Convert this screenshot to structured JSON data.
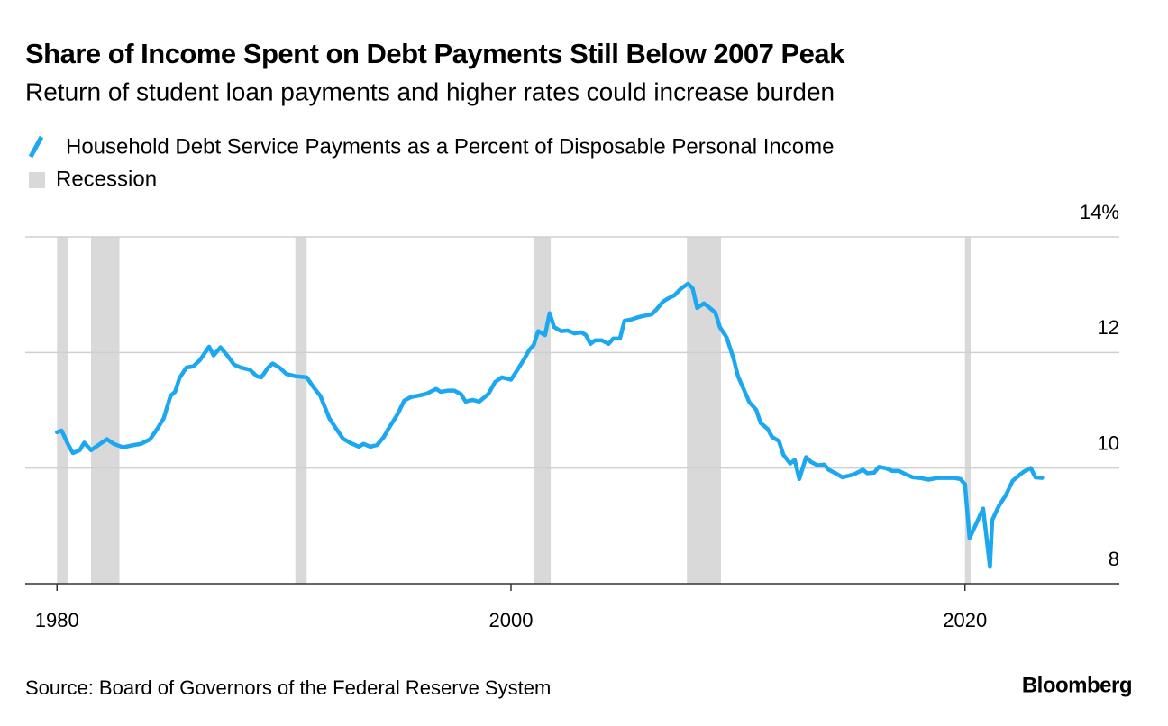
{
  "chart_data": {
    "type": "line",
    "title": "Share of Income Spent on Debt Payments Still Below 2007 Peak",
    "subtitle": "Return of student loan payments and higher rates could increase burden",
    "source": "Source: Board of Governors of the Federal Reserve System",
    "brand": "Bloomberg",
    "x": [
      1980.0,
      1980.2,
      1980.5,
      1980.7,
      1981.0,
      1981.2,
      1981.5,
      1981.9,
      1982.2,
      1982.5,
      1982.9,
      1983.4,
      1983.7,
      1984.1,
      1984.4,
      1984.7,
      1985.0,
      1985.2,
      1985.4,
      1985.7,
      1986.0,
      1986.3,
      1986.7,
      1986.9,
      1987.2,
      1987.5,
      1987.8,
      1988.1,
      1988.5,
      1988.8,
      1989.0,
      1989.3,
      1989.5,
      1989.8,
      1990.1,
      1990.5,
      1991.0,
      1991.3,
      1991.6,
      1992.0,
      1992.3,
      1992.6,
      1992.9,
      1993.3,
      1993.5,
      1993.8,
      1994.1,
      1994.4,
      1994.6,
      1995.0,
      1995.3,
      1995.6,
      1996.0,
      1996.3,
      1996.7,
      1996.9,
      1997.2,
      1997.5,
      1997.8,
      1998.0,
      1998.3,
      1998.6,
      1999.0,
      1999.3,
      1999.6,
      2000.0,
      2000.3,
      2000.6,
      2000.8,
      2001.0,
      2001.2,
      2001.5,
      2001.7,
      2001.9,
      2002.2,
      2002.5,
      2002.8,
      2003.1,
      2003.3,
      2003.5,
      2003.7,
      2004.0,
      2004.3,
      2004.5,
      2004.8,
      2005.0,
      2005.3,
      2005.6,
      2005.8,
      2006.2,
      2006.4,
      2006.7,
      2006.9,
      2007.2,
      2007.5,
      2007.8,
      2008.0,
      2008.2,
      2008.5,
      2008.7,
      2009.0,
      2009.2,
      2009.5,
      2009.8,
      2010.0,
      2010.3,
      2010.5,
      2010.8,
      2011.0,
      2011.3,
      2011.5,
      2011.8,
      2012.0,
      2012.3,
      2012.5,
      2012.7,
      2013.0,
      2013.2,
      2013.5,
      2013.8,
      2014.0,
      2014.3,
      2014.6,
      2014.8,
      2015.1,
      2015.5,
      2015.7,
      2016.0,
      2016.2,
      2016.5,
      2016.8,
      2017.1,
      2017.4,
      2017.7,
      2018.0,
      2018.4,
      2018.8,
      2019.2,
      2019.5,
      2019.8,
      2020.0,
      2020.2,
      2020.5,
      2020.8,
      2021.1,
      2021.2,
      2021.5,
      2021.8,
      2022.1,
      2022.4,
      2022.6,
      2022.9,
      2023.1,
      2023.4
    ],
    "series": [
      {
        "name": "Household Debt Service Payments as a Percent of Disposable Personal Income",
        "color": "#1ba8f0",
        "values": [
          10.62,
          10.65,
          10.4,
          10.26,
          10.31,
          10.44,
          10.31,
          10.42,
          10.5,
          10.42,
          10.36,
          10.4,
          10.42,
          10.5,
          10.67,
          10.86,
          11.25,
          11.32,
          11.56,
          11.74,
          11.76,
          11.87,
          12.1,
          11.95,
          12.09,
          11.95,
          11.79,
          11.74,
          11.7,
          11.59,
          11.57,
          11.74,
          11.81,
          11.74,
          11.63,
          11.59,
          11.57,
          11.4,
          11.25,
          10.86,
          10.68,
          10.51,
          10.44,
          10.37,
          10.42,
          10.37,
          10.4,
          10.54,
          10.68,
          10.93,
          11.17,
          11.23,
          11.26,
          11.29,
          11.37,
          11.32,
          11.34,
          11.34,
          11.28,
          11.15,
          11.18,
          11.15,
          11.28,
          11.49,
          11.57,
          11.53,
          11.71,
          11.9,
          12.04,
          12.13,
          12.37,
          12.3,
          12.68,
          12.44,
          12.37,
          12.38,
          12.33,
          12.35,
          12.3,
          12.15,
          12.21,
          12.21,
          12.15,
          12.24,
          12.24,
          12.55,
          12.57,
          12.61,
          12.63,
          12.66,
          12.74,
          12.88,
          12.93,
          12.99,
          13.11,
          13.19,
          13.11,
          12.77,
          12.85,
          12.79,
          12.69,
          12.44,
          12.26,
          11.9,
          11.59,
          11.32,
          11.14,
          11.01,
          10.78,
          10.68,
          10.54,
          10.47,
          10.23,
          10.08,
          10.14,
          9.81,
          10.19,
          10.11,
          10.05,
          10.06,
          9.97,
          9.91,
          9.84,
          9.86,
          9.89,
          9.97,
          9.91,
          9.92,
          10.02,
          10.0,
          9.95,
          9.95,
          9.89,
          9.84,
          9.83,
          9.8,
          9.83,
          9.83,
          9.83,
          9.81,
          9.72,
          8.79,
          9.04,
          9.3,
          8.29,
          9.1,
          9.35,
          9.53,
          9.78,
          9.88,
          9.94,
          10.0,
          9.84,
          9.83
        ]
      }
    ],
    "recessions": {
      "name": "Recession",
      "color": "#d9d9d9",
      "periods": [
        [
          1980.0,
          1980.5
        ],
        [
          1981.5,
          1982.75
        ],
        [
          1990.5,
          1991.0
        ],
        [
          2001.0,
          2001.75
        ],
        [
          2007.75,
          2009.25
        ],
        [
          2020.0,
          2020.25
        ]
      ]
    },
    "xlim": [
      1978.6,
      2026.8
    ],
    "xticks": [
      1980,
      2000,
      2020
    ],
    "ylim": [
      8,
      14
    ],
    "yticks": [
      8,
      10,
      12,
      {
        "value": 14,
        "label": "14%"
      }
    ],
    "grid": true
  }
}
